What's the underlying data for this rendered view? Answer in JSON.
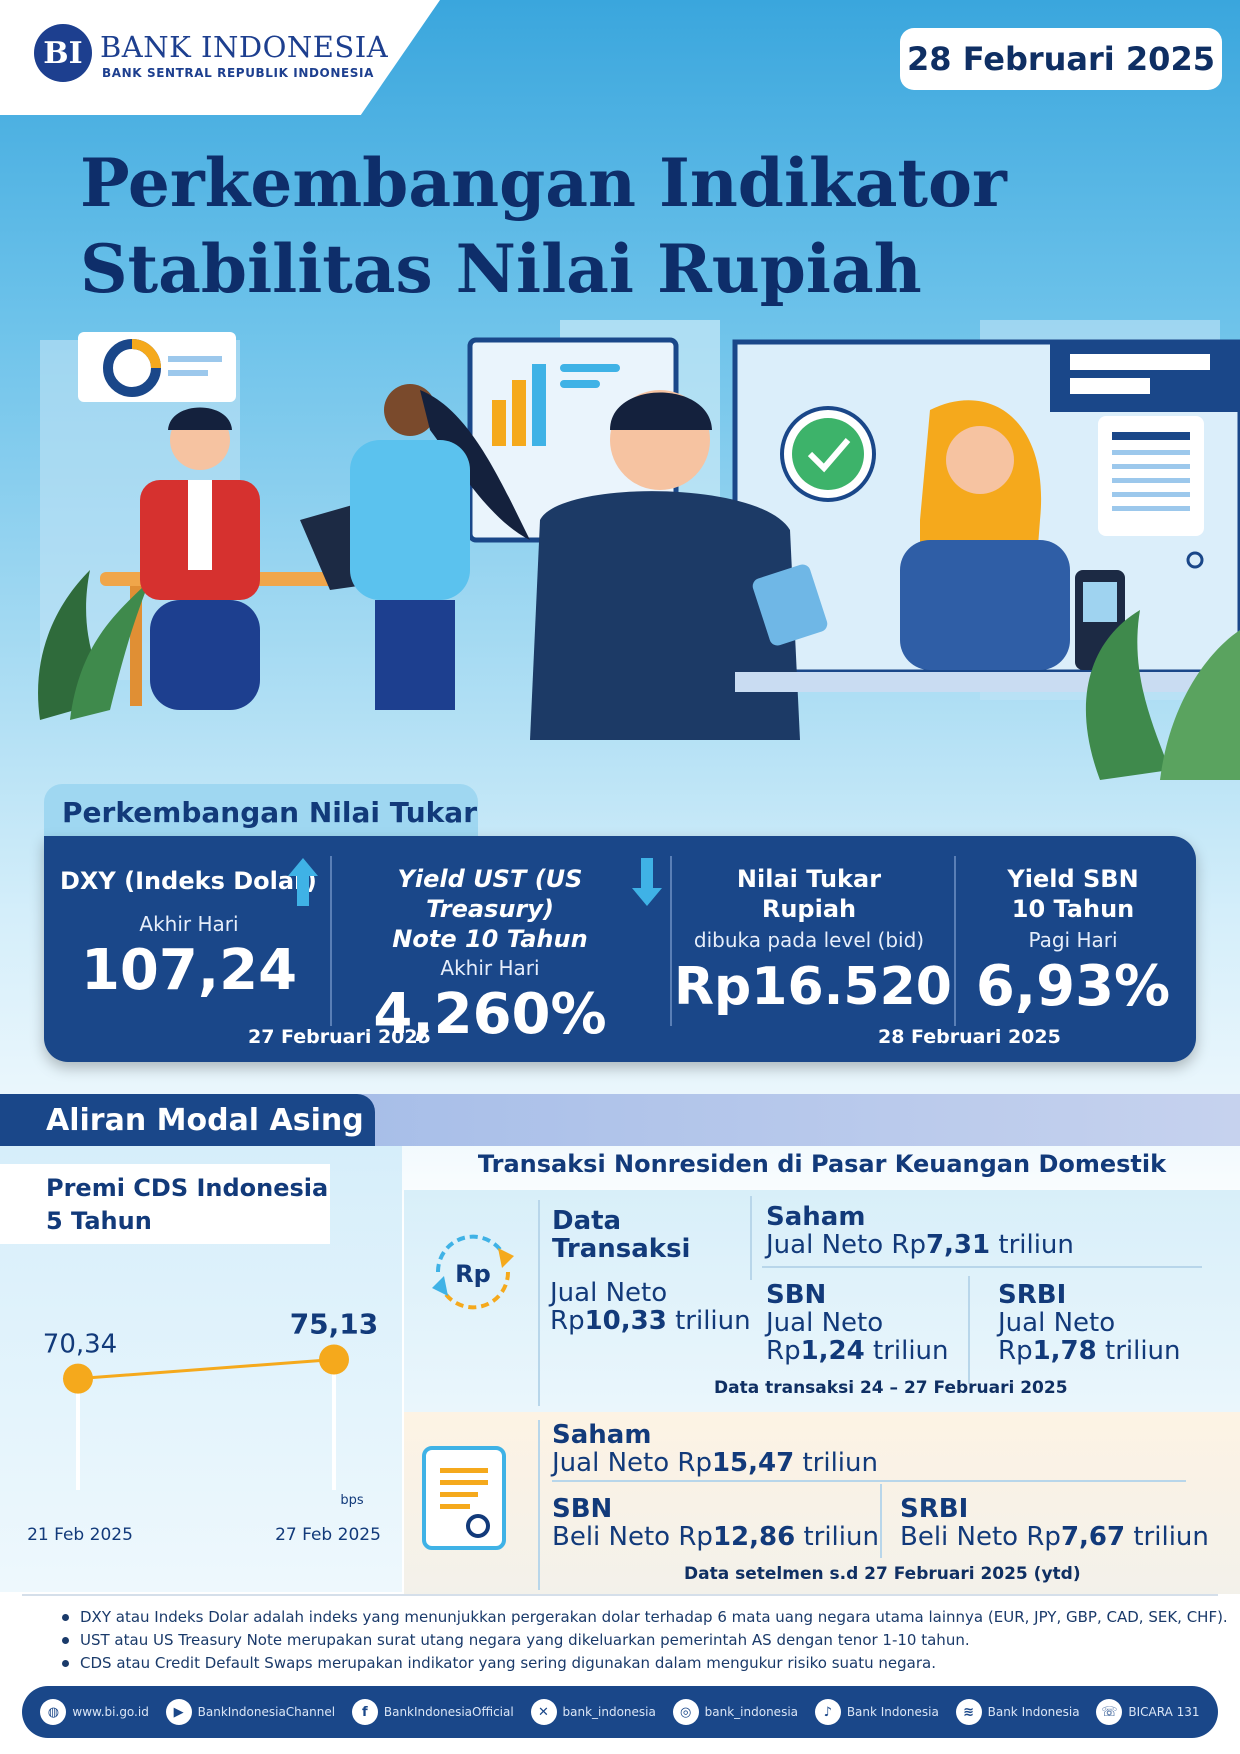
{
  "header": {
    "logo_mark": "BI",
    "logo_name": "BANK INDONESIA",
    "logo_subtitle": "BANK SENTRAL REPUBLIK INDONESIA",
    "date": "28 Februari 2025"
  },
  "title": {
    "line1": "Perkembangan Indikator",
    "line2": "Stabilitas Nilai Rupiah"
  },
  "exchange": {
    "tab_label": "Perkembangan Nilai Tukar",
    "dxy": {
      "heading": "DXY (Indeks Dolar)",
      "sub": "Akhir Hari",
      "value": "107,24",
      "trend": "up"
    },
    "ust": {
      "heading_line1": "Yield UST (US Treasury)",
      "heading_line2": "Note  10 Tahun",
      "sub": "Akhir Hari",
      "value": "4,260%",
      "trend": "down"
    },
    "rupiah": {
      "heading_line1": "Nilai Tukar",
      "heading_line2": "Rupiah",
      "sub": "dibuka pada level (bid)",
      "value": "Rp16.520"
    },
    "sbn": {
      "heading_line1": "Yield SBN",
      "heading_line2": "10 Tahun",
      "sub": "Pagi Hari",
      "value": "6,93%"
    },
    "date_left": "27 Februari 2025",
    "date_right": "28 Februari 2025"
  },
  "capital_flow": {
    "tab_label": "Aliran Modal Asing",
    "cds": {
      "label_line1": "Premi CDS Indonesia",
      "label_line2": "5 Tahun",
      "unit": "bps"
    },
    "transactions": {
      "heading": "Transaksi Nonresiden di Pasar Keuangan Domestik",
      "data_title_line1": "Data",
      "data_title_line2": "Transaksi",
      "total_line1": "Jual Neto",
      "total_line2_prefix": "Rp",
      "total_value": "10,33",
      "total_suffix": " triliun",
      "saham_title": "Saham",
      "saham_prefix": "Jual Neto Rp",
      "saham_value": "7,31",
      "saham_suffix": " triliun",
      "sbn_title": "SBN",
      "sbn_line1": "Jual Neto",
      "sbn_prefix": "Rp",
      "sbn_value": "1,24",
      "sbn_suffix": " triliun",
      "srbi_title": "SRBI",
      "srbi_line1": "Jual Neto",
      "srbi_prefix": "Rp",
      "srbi_value": "1,78",
      "srbi_suffix": " triliun",
      "period_note": "Data transaksi 24 – 27 Februari 2025"
    },
    "settlement": {
      "saham_title": "Saham",
      "saham_prefix": "Jual Neto Rp",
      "saham_value": "15,47",
      "saham_suffix": " triliun",
      "sbn_title": "SBN",
      "sbn_prefix": "Beli Neto Rp",
      "sbn_value": "12,86",
      "sbn_suffix": " triliun",
      "srbi_title": "SRBI",
      "srbi_prefix": "Beli Neto Rp",
      "srbi_value": "7,67",
      "srbi_suffix": " triliun",
      "period_note": "Data setelmen s.d 27 Februari 2025 (ytd)"
    }
  },
  "chart_data": {
    "type": "line",
    "x": [
      "21 Feb 2025",
      "27 Feb 2025"
    ],
    "series": [
      {
        "values": [
          70.34,
          75.13
        ]
      }
    ],
    "data_labels": [
      "70,34",
      "75,13"
    ],
    "ylabel": "bps",
    "color": "#f5a91c"
  },
  "notes": [
    "DXY atau Indeks Dolar adalah indeks yang menunjukkan pergerakan dolar terhadap 6 mata uang negara utama lainnya (EUR, JPY, GBP, CAD, SEK, CHF).",
    "UST atau US Treasury Note merupakan surat utang negara yang dikeluarkan  pemerintah AS dengan tenor 1-10 tahun.",
    "CDS atau Credit Default Swaps merupakan indikator  yang sering digunakan dalam mengukur risiko suatu negara."
  ],
  "footer": [
    {
      "icon": "globe-icon",
      "label": "www.bi.go.id"
    },
    {
      "icon": "youtube-icon",
      "label": "BankIndonesiaChannel"
    },
    {
      "icon": "facebook-icon",
      "label": "BankIndonesiaOfficial"
    },
    {
      "icon": "x-icon",
      "label": "bank_indonesia"
    },
    {
      "icon": "instagram-icon",
      "label": "bank_indonesia"
    },
    {
      "icon": "tiktok-icon",
      "label": "Bank Indonesia"
    },
    {
      "icon": "spotify-icon",
      "label": "Bank Indonesia"
    },
    {
      "icon": "bicara-icon",
      "label": "BICARA 131"
    }
  ],
  "colors": {
    "navy": "#1a4789",
    "dark_text": "#123a7a",
    "accent_up": "#3fb2e6",
    "orange": "#f5a91c"
  }
}
